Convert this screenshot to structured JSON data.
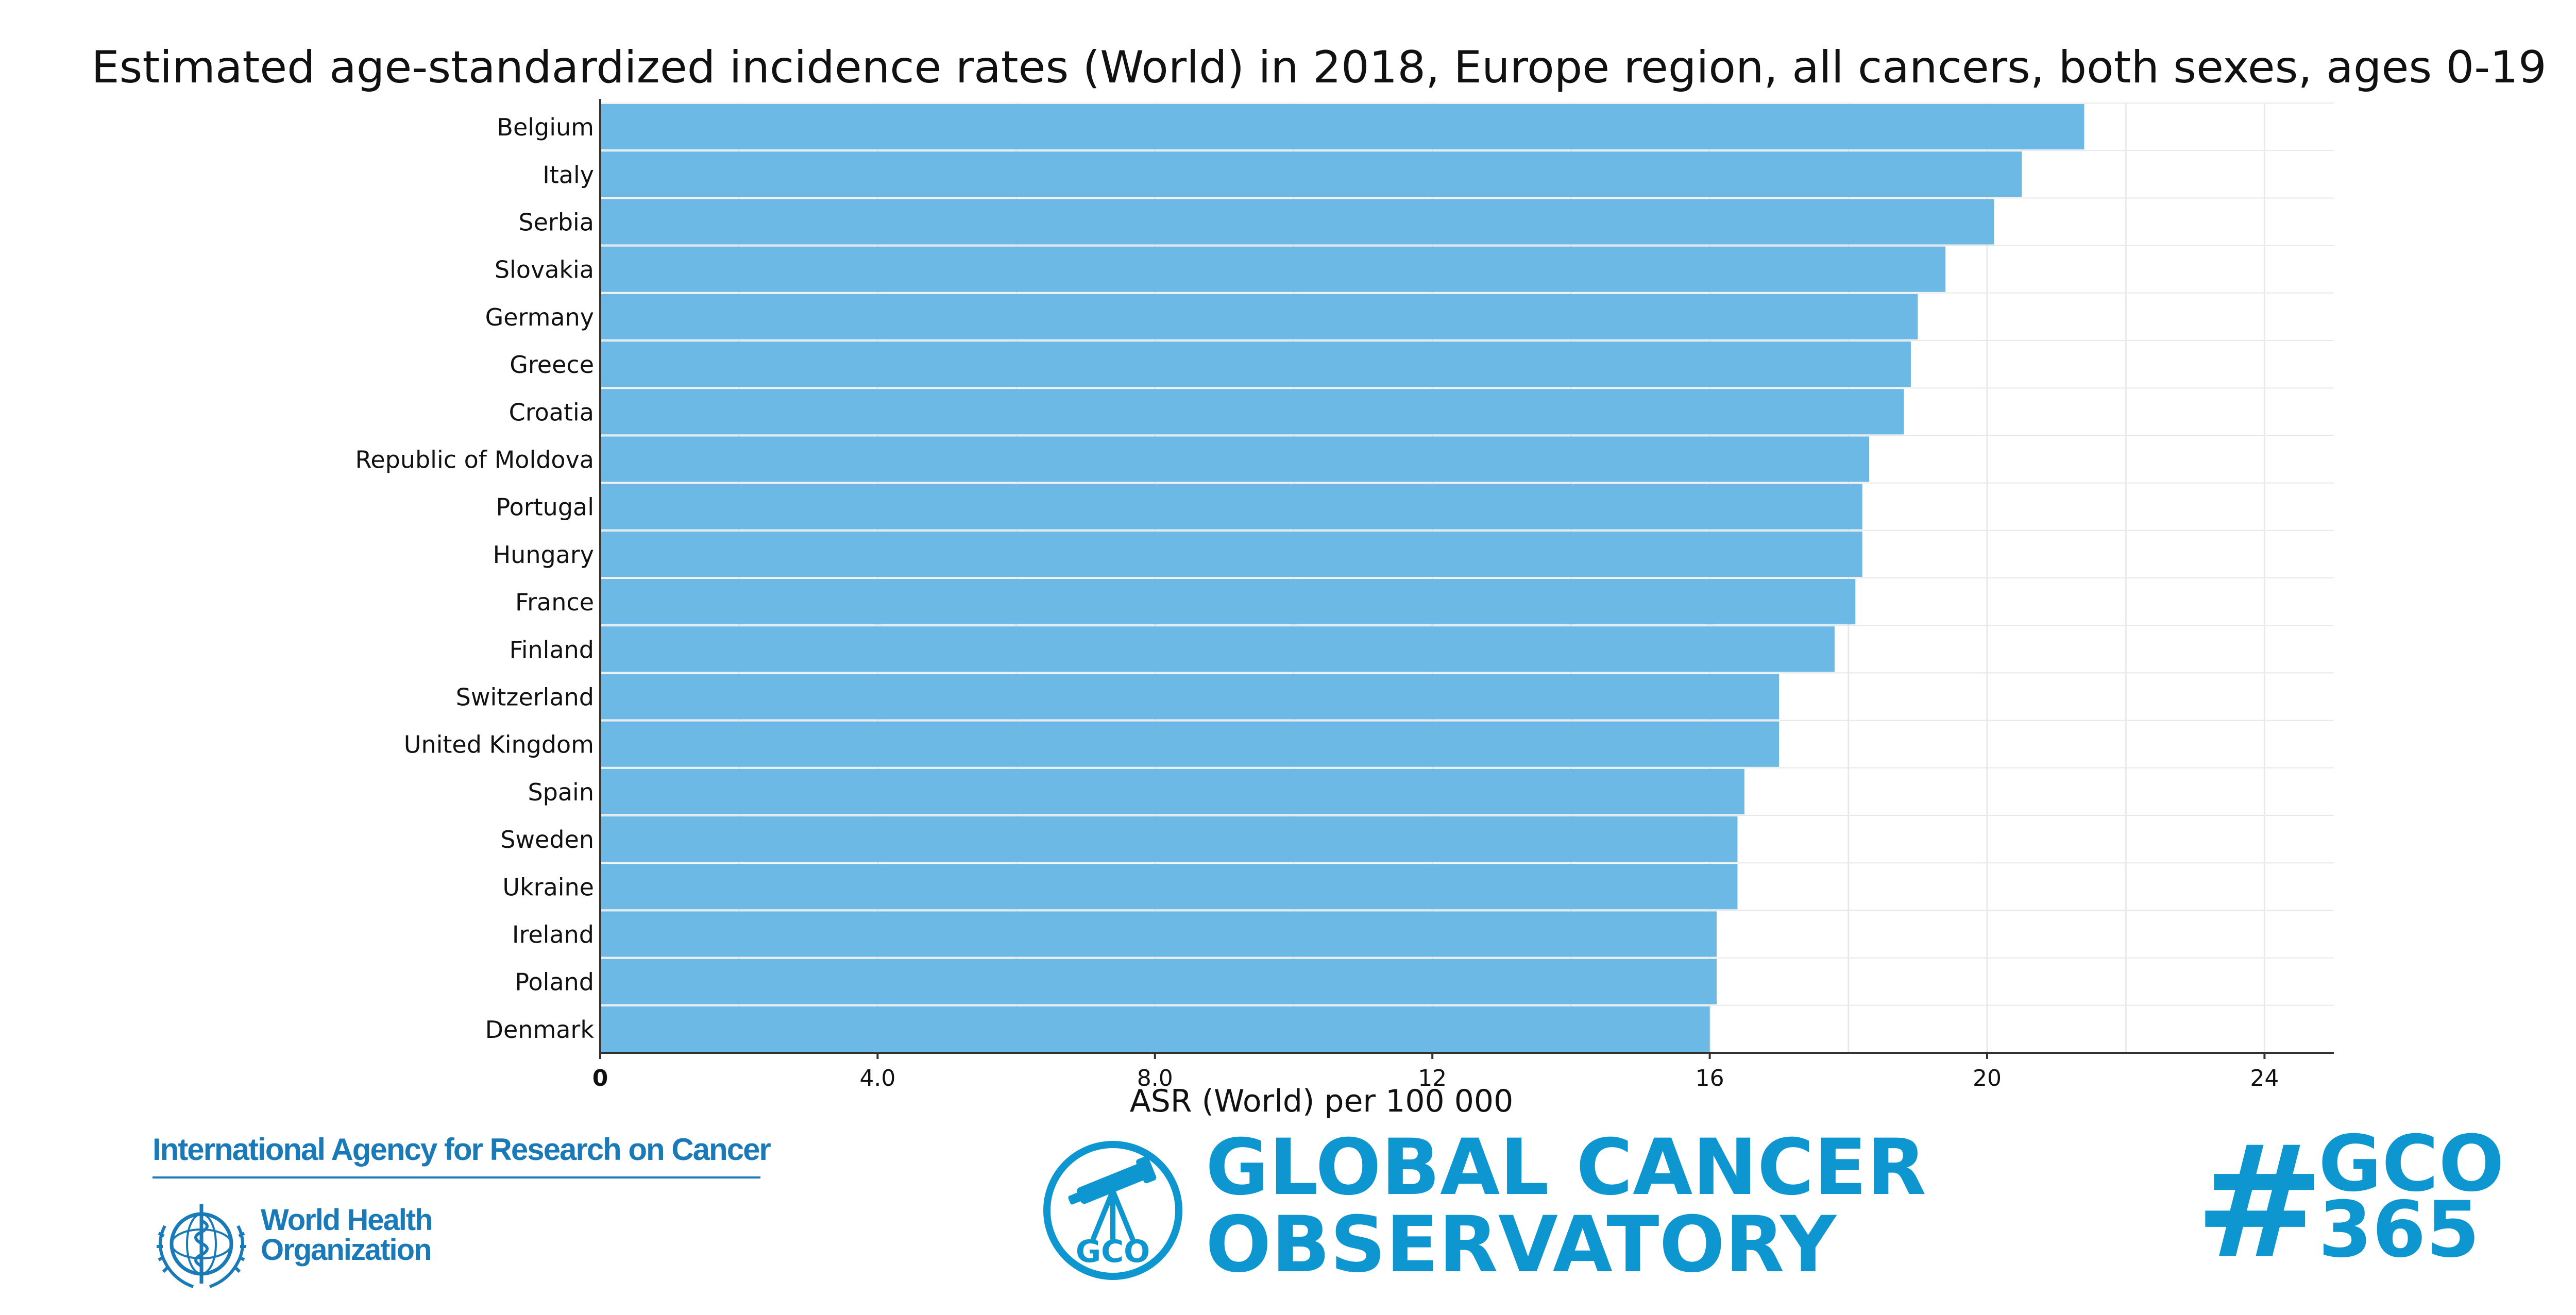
{
  "chart_data": {
    "type": "bar",
    "orientation": "horizontal",
    "title": "Estimated age-standardized incidence rates (World) in 2018, Europe region, all cancers, both sexes, ages 0-19",
    "xlabel": "ASR (World) per 100 000",
    "ylabel": "",
    "categories": [
      "Belgium",
      "Italy",
      "Serbia",
      "Slovakia",
      "Germany",
      "Greece",
      "Croatia",
      "Republic of Moldova",
      "Portugal",
      "Hungary",
      "France",
      "Finland",
      "Switzerland",
      "United Kingdom",
      "Spain",
      "Sweden",
      "Ukraine",
      "Ireland",
      "Poland",
      "Denmark"
    ],
    "values": [
      21.4,
      20.5,
      20.1,
      19.4,
      19.0,
      18.9,
      18.8,
      18.3,
      18.2,
      18.2,
      18.1,
      17.8,
      17.0,
      17.0,
      16.5,
      16.4,
      16.4,
      16.1,
      16.1,
      16.0
    ],
    "xlim": [
      0,
      25
    ],
    "ticks": [
      0,
      4,
      8,
      12,
      16,
      20,
      24
    ],
    "tick_labels": [
      "0",
      "4.0",
      "8.0",
      "12",
      "16",
      "20",
      "24"
    ],
    "grid": true,
    "bar_color": "#6cb9e5"
  },
  "footer": {
    "iarc_name": "International Agency for Research on Cancer",
    "who_line1": "World Health",
    "who_line2": "Organization",
    "gco_badge": "GCO",
    "gco_line1": "GLOBAL CANCER",
    "gco_line2": "OBSERVATORY",
    "hashtag_symbol": "#",
    "hashtag_line1": "GCO",
    "hashtag_line2": "365"
  },
  "colors": {
    "bar": "#6cb9e5",
    "brand_dark": "#1a7ab8",
    "brand_light": "#0d96cf",
    "grid": "#e8e8e8",
    "axis": "#333333"
  }
}
